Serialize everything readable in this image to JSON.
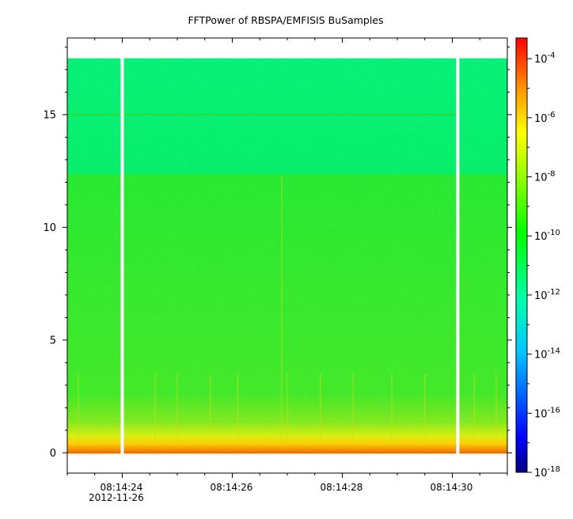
{
  "chart_data": {
    "type": "heatmap",
    "title": "FFTPower of RBSPA/EMFISIS  BuSamples",
    "xlabel": "",
    "ylabel": "",
    "x_ticks": [
      {
        "label": "08:14:24",
        "t": 24
      },
      {
        "label": "08:14:26",
        "t": 26
      },
      {
        "label": "08:14:28",
        "t": 28
      },
      {
        "label": "08:14:30",
        "t": 30
      }
    ],
    "x_date_label": "2012-11-26",
    "xlim": [
      "08:14:23.0",
      "08:14:31.0"
    ],
    "y_ticks": [
      0,
      5,
      10,
      15
    ],
    "ylim": [
      -0.9,
      18.4
    ],
    "data_ymax": 17.5,
    "data_gaps": [
      "08:14:24.0",
      "08:14:30.1"
    ],
    "colorbar": {
      "scale": "log",
      "range": [
        "1e-18",
        "1e-3.3"
      ],
      "colormap": [
        "#00007f",
        "#0000ff",
        "#00c8ff",
        "#00ffaa",
        "#00ff00",
        "#aaff00",
        "#ffff00",
        "#ff9900",
        "#ff0000"
      ],
      "ticks": [
        {
          "base": "10",
          "exp": "-4"
        },
        {
          "base": "10",
          "exp": "-6"
        },
        {
          "base": "10",
          "exp": "-8"
        },
        {
          "base": "10",
          "exp": "-10"
        },
        {
          "base": "10",
          "exp": "-12"
        },
        {
          "base": "10",
          "exp": "-14"
        },
        {
          "base": "10",
          "exp": "-16"
        },
        {
          "base": "10",
          "exp": "-18"
        }
      ]
    }
  }
}
